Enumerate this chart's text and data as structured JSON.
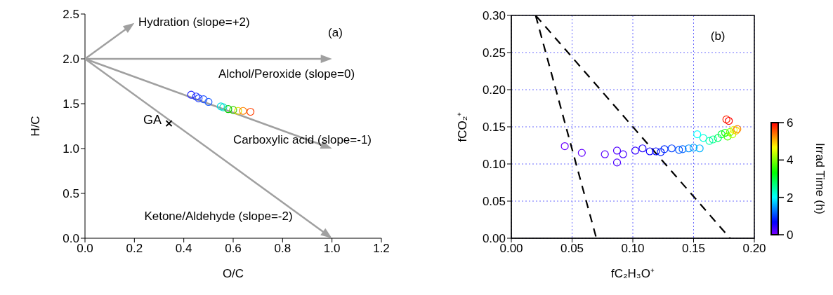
{
  "chart_data": [
    {
      "type": "scatter",
      "xlabel": "O/C",
      "ylabel": "H/C",
      "xlim": [
        0,
        1.2
      ],
      "xticks": [
        {
          "value": 0,
          "label": "0.0"
        },
        {
          "value": 0.2,
          "label": "0.2"
        },
        {
          "value": 0.4,
          "label": "0.4"
        },
        {
          "value": 0.6,
          "label": "0.6"
        },
        {
          "value": 0.8,
          "label": "0.8"
        },
        {
          "value": 1,
          "label": "1.0"
        },
        {
          "value": 1.2,
          "label": "1.2"
        }
      ],
      "ylim": [
        0,
        2.5
      ],
      "yticks": [
        {
          "value": 0,
          "label": "0.0"
        },
        {
          "value": 0.5,
          "label": "0.5"
        },
        {
          "value": 1,
          "label": "1.0"
        },
        {
          "value": 1.5,
          "label": "1.5"
        },
        {
          "value": 2,
          "label": "2.0"
        },
        {
          "value": 2.5,
          "label": "2.5"
        }
      ],
      "annotations": [
        "(a)",
        "Hydration (slope=+2)",
        "Alchol/Peroxide (slope=0)",
        "Carboxylic acid (slope=-1)",
        "Ketone/Aldehyde (slope=-2)"
      ],
      "series": [
        {
          "marker": "circle",
          "x": [
            0.43,
            0.45,
            0.46,
            0.48,
            0.5,
            0.55,
            0.56,
            0.58,
            0.6,
            0.62,
            0.64,
            0.67
          ],
          "values": [
            1.6,
            1.58,
            1.56,
            1.55,
            1.52,
            1.47,
            1.46,
            1.44,
            1.43,
            1.42,
            1.42,
            1.41
          ],
          "colors": [
            "#2020ff",
            "#2030ff",
            "#2040ff",
            "#2050ff",
            "#2060ff",
            "#00e0e0",
            "#00e0c0",
            "#00d000",
            "#40d000",
            "#e0e000",
            "#ff8000",
            "#ff4000"
          ]
        },
        {
          "name": "GA",
          "marker": "cross",
          "x": [
            0.34
          ],
          "values": [
            1.28
          ],
          "color": "#000000"
        }
      ]
    },
    {
      "type": "scatter",
      "xlabel": "fC₂H₃O⁺",
      "ylabel": "fCO₂⁺",
      "xlim": [
        0,
        0.2
      ],
      "xticks": [
        {
          "value": 0,
          "label": "0.00"
        },
        {
          "value": 0.05,
          "label": "0.05"
        },
        {
          "value": 0.1,
          "label": "0.10"
        },
        {
          "value": 0.15,
          "label": "0.15"
        },
        {
          "value": 0.2,
          "label": "0.20"
        }
      ],
      "ylim": [
        0,
        0.3
      ],
      "yticks": [
        {
          "value": 0,
          "label": "0.00"
        },
        {
          "value": 0.05,
          "label": "0.05"
        },
        {
          "value": 0.1,
          "label": "0.10"
        },
        {
          "value": 0.15,
          "label": "0.15"
        },
        {
          "value": 0.2,
          "label": "0.20"
        },
        {
          "value": 0.25,
          "label": "0.25"
        },
        {
          "value": 0.3,
          "label": "0.30"
        }
      ],
      "grid": true,
      "clabel": "Irrad Time (h)",
      "clim": [
        0,
        6
      ],
      "cticks": [
        0,
        2,
        4,
        6
      ],
      "annotations": [
        "(b)"
      ],
      "series": [
        {
          "marker": "circle",
          "x": [
            0.044,
            0.058,
            0.077,
            0.087,
            0.087,
            0.092,
            0.102,
            0.108,
            0.114,
            0.119,
            0.123,
            0.126,
            0.132,
            0.138,
            0.141,
            0.146,
            0.15,
            0.155,
            0.153,
            0.158,
            0.163,
            0.166,
            0.17,
            0.173,
            0.176,
            0.178,
            0.18,
            0.182,
            0.183,
            0.185,
            0.186,
            0.177,
            0.179
          ],
          "values": [
            0.124,
            0.115,
            0.113,
            0.118,
            0.102,
            0.113,
            0.118,
            0.121,
            0.117,
            0.117,
            0.116,
            0.12,
            0.121,
            0.119,
            0.12,
            0.121,
            0.122,
            0.121,
            0.14,
            0.135,
            0.131,
            0.133,
            0.135,
            0.14,
            0.142,
            0.137,
            0.143,
            0.14,
            0.146,
            0.145,
            0.147,
            0.16,
            0.158
          ],
          "colors": [
            "#6c00ff",
            "#6300ff",
            "#5900ff",
            "#5000ff",
            "#5000ff",
            "#4600ff",
            "#3300ff",
            "#2000ff",
            "#0d00ff",
            "#0006ff",
            "#001aff",
            "#002dff",
            "#0040ff",
            "#0053ff",
            "#0066ff",
            "#008cff",
            "#009fff",
            "#00b3ff",
            "#00ffff",
            "#00ffd9",
            "#00ffb3",
            "#00ff8c",
            "#00ff66",
            "#00ff40",
            "#0dff00",
            "#46ff00",
            "#80ff00",
            "#baff00",
            "#f2ff00",
            "#ffbf00",
            "#ff8600",
            "#ff2600",
            "#ff0000"
          ],
          "cvalues": [
            0.1,
            0.15,
            0.2,
            0.25,
            0.25,
            0.3,
            0.4,
            0.5,
            0.6,
            0.7,
            0.8,
            0.9,
            1,
            1.1,
            1.2,
            1.4,
            1.5,
            1.6,
            2,
            2.2,
            2.4,
            2.6,
            2.8,
            3,
            3.4,
            3.7,
            4,
            4.3,
            4.6,
            5,
            5.3,
            5.8,
            6
          ]
        },
        {
          "type": "line",
          "line_style": "dashed",
          "x": [
            0.02,
            0.07
          ],
          "values": [
            0.3,
            0
          ],
          "color": "#000000"
        },
        {
          "type": "line",
          "line_style": "dashed",
          "x": [
            0.02,
            0.18
          ],
          "values": [
            0.3,
            0
          ],
          "color": "#000000"
        }
      ]
    }
  ]
}
